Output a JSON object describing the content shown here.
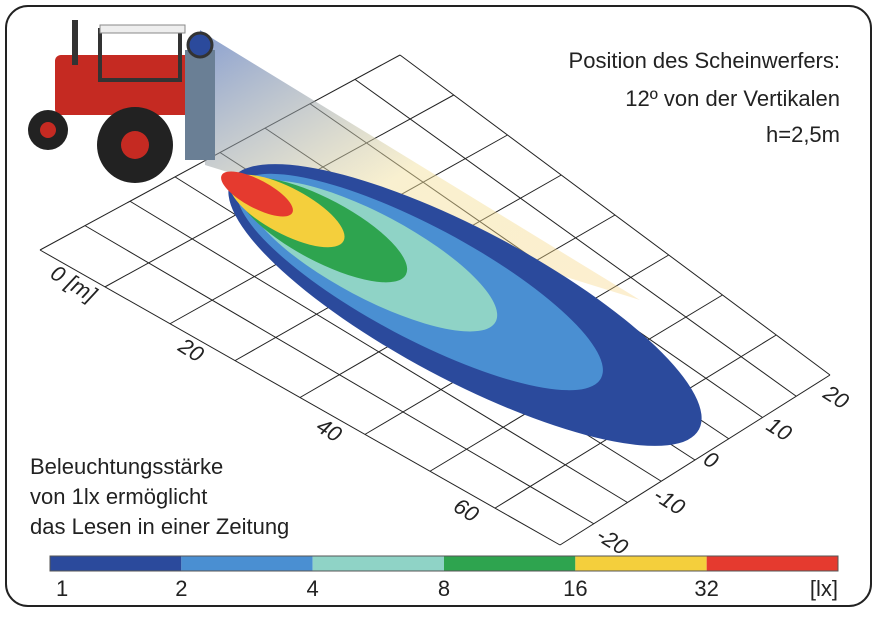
{
  "info": {
    "lines": [
      "Position des Scheinwerfers:",
      "12º von der Vertikalen",
      "h=2,5m"
    ]
  },
  "note": {
    "lines": [
      "Beleuchtungsstärke",
      "von 1lx ermöglicht",
      "das Lesen in einer Zeitung"
    ]
  },
  "distance_axis": {
    "labels": [
      "0 [m]",
      "20",
      "40",
      "60"
    ]
  },
  "lateral_axis": {
    "labels": [
      "20",
      "10",
      "0",
      "-10",
      "-20"
    ]
  },
  "legend": {
    "labels": [
      "1",
      "2",
      "4",
      "8",
      "16",
      "32"
    ],
    "unit": "[lx]",
    "colors": [
      "#2b4a9c",
      "#4a8fd2",
      "#8fd3c6",
      "#2ea44f",
      "#f4cf3c",
      "#e53a2f"
    ]
  }
}
